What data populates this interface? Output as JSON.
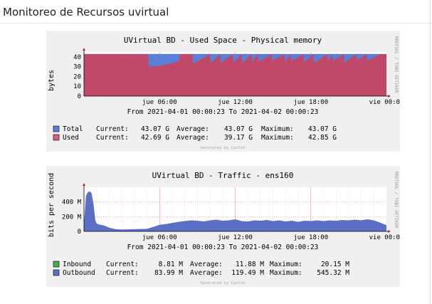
{
  "page": {
    "title": "Monitoreo de Recursos uvirtual"
  },
  "graphs": [
    {
      "title": "UVirtual BD - Used Space - Physical memory",
      "ylabel": "bytes",
      "side_label": "RRDTOOL / TOBI OETIKER",
      "footer": "Generated by Cacti®",
      "range": "From 2021-04-01 00:00:23 To 2021-04-02 00:00:23",
      "legend": [
        {
          "name": "Total",
          "current": "43.07 G",
          "average": "43.07 G",
          "maximum": "43.07 G",
          "color": "#5b7fd6"
        },
        {
          "name": "Used",
          "current": "42.69 G",
          "average": "39.17 G",
          "maximum": "42.85 G",
          "color": "#d85e7b"
        }
      ],
      "labels": {
        "current": "Current:",
        "average": "Average:",
        "maximum": "Maximum:"
      }
    },
    {
      "title": "UVirtual BD - Traffic - ens160",
      "ylabel": "bits per second",
      "side_label": "RRDTOOL / TOBI OETIKER",
      "footer": "Generated by Cacti®",
      "range": "From 2021-04-01 00:00:23 To 2021-04-02 00:00:23",
      "legend": [
        {
          "name": "Inbound",
          "current": "8.81 M",
          "average": "11.88 M",
          "maximum": "20.15 M",
          "color": "#3cb34a"
        },
        {
          "name": "Outbound",
          "current": "83.99 M",
          "average": "119.49 M",
          "maximum": "545.32 M",
          "color": "#5b6fc7"
        }
      ],
      "labels": {
        "current": "Current:",
        "average": "Average:",
        "maximum": "Maximum:"
      }
    }
  ],
  "chart_data": [
    {
      "type": "area",
      "title": "UVirtual BD - Used Space - Physical memory",
      "ylabel": "bytes",
      "ylim": [
        0,
        45
      ],
      "y_ticks": [
        "0",
        "10",
        "20",
        "30",
        "40"
      ],
      "x_ticks": [
        "jue 06:00",
        "jue 12:00",
        "jue 18:00",
        "vie 00:00"
      ],
      "x_tick_hours": [
        6,
        12,
        18,
        24
      ],
      "xlim_hours": [
        0,
        24
      ],
      "grid": true,
      "series": [
        {
          "name": "Total",
          "color": "#5b7fd6",
          "x": [
            0,
            24
          ],
          "values": [
            43.07,
            43.07
          ]
        },
        {
          "name": "Used",
          "color": "#c0496a",
          "x": [
            0,
            5.1,
            5.15,
            6.2,
            7.0,
            7.55,
            7.6,
            8.6,
            8.65,
            10.0,
            10.05,
            10.8,
            10.85,
            11.8,
            11.85,
            12.5,
            12.55,
            13.3,
            13.35,
            13.8,
            13.85,
            14.9,
            14.95,
            15.9,
            15.95,
            16.4,
            16.45,
            17.4,
            17.45,
            18.2,
            18.25,
            19.3,
            19.35,
            19.7,
            19.75,
            20.6,
            20.65,
            21.6,
            21.65,
            22.4,
            22.45,
            23.5,
            24
          ],
          "values": [
            42.8,
            42.8,
            29.5,
            31.5,
            33.5,
            36.0,
            42.8,
            42.8,
            33.0,
            42.8,
            33.5,
            42.8,
            34.0,
            42.8,
            34.0,
            42.8,
            33.5,
            42.8,
            35.0,
            42.8,
            35.0,
            42.8,
            36.0,
            42.8,
            35.0,
            42.8,
            35.5,
            42.8,
            34.5,
            42.8,
            34.0,
            42.8,
            35.5,
            42.8,
            36.0,
            42.8,
            34.0,
            42.8,
            36.5,
            42.8,
            36.0,
            42.8,
            42.8
          ]
        }
      ]
    },
    {
      "type": "area",
      "title": "UVirtual BD - Traffic - ens160",
      "ylabel": "bits per second",
      "ylim": [
        0,
        600
      ],
      "y_ticks": [
        "0",
        "200 M",
        "400 M"
      ],
      "x_ticks": [
        "jue 06:00",
        "jue 12:00",
        "jue 18:00",
        "vie 00:00"
      ],
      "x_tick_hours": [
        6,
        12,
        18,
        24
      ],
      "xlim_hours": [
        0,
        24
      ],
      "grid": true,
      "series": [
        {
          "name": "Inbound",
          "color": "#3cb34a",
          "x": [
            0,
            3,
            6,
            9,
            12,
            15,
            18,
            21,
            24
          ],
          "values": [
            10,
            12,
            11,
            12,
            13,
            12,
            12,
            11,
            9
          ]
        },
        {
          "name": "Outbound",
          "color": "#5b6fc7",
          "x": [
            0,
            0.15,
            0.3,
            0.45,
            0.6,
            0.75,
            0.9,
            1.0,
            1.1,
            1.3,
            1.6,
            2.0,
            2.5,
            3.0,
            4.0,
            5.0,
            5.5,
            6.0,
            6.5,
            7.0,
            7.5,
            8.0,
            8.5,
            9.0,
            9.5,
            10.0,
            10.5,
            11.0,
            11.5,
            12.0,
            12.5,
            13.0,
            13.5,
            14.0,
            14.5,
            15.0,
            15.5,
            16.0,
            16.5,
            17.0,
            17.5,
            18.0,
            18.5,
            19.0,
            19.5,
            20.0,
            20.5,
            21.0,
            21.5,
            22.0,
            22.5,
            23.0,
            23.5,
            24.0
          ],
          "values": [
            90,
            480,
            530,
            545,
            520,
            380,
            150,
            110,
            100,
            90,
            80,
            50,
            30,
            25,
            30,
            35,
            60,
            90,
            100,
            115,
            130,
            140,
            150,
            145,
            135,
            150,
            160,
            145,
            150,
            165,
            140,
            135,
            150,
            145,
            155,
            140,
            150,
            135,
            145,
            130,
            145,
            140,
            150,
            140,
            150,
            145,
            155,
            150,
            160,
            150,
            165,
            150,
            120,
            84
          ]
        }
      ]
    }
  ]
}
